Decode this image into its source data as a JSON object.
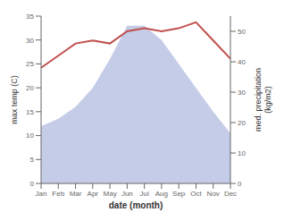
{
  "chart_data": {
    "type": "area",
    "categories": [
      "Jan",
      "Feb",
      "Mar",
      "Apr",
      "May",
      "Jun",
      "Jul",
      "Aug",
      "Sep",
      "Oct",
      "Nov",
      "Dec"
    ],
    "xlabel": "date (month)",
    "ylabel": "max temp (C)",
    "y2label": "med. precipitation\n(kg/m2)",
    "series": [
      {
        "type": "area",
        "color": "#c5cce8",
        "values": [
          12,
          13.5,
          16,
          20,
          26,
          33,
          33,
          30,
          25,
          20,
          15,
          10.5
        ]
      },
      {
        "type": "line",
        "color": "#c0504d",
        "axis": "y2",
        "values": [
          38,
          42,
          46,
          47,
          46,
          50,
          51,
          50,
          51,
          53,
          47,
          41
        ]
      }
    ],
    "ylim": [
      0,
      35
    ],
    "yticks": [
      0,
      5,
      10,
      15,
      20,
      25,
      30,
      35
    ],
    "y2lim": [
      0,
      55
    ],
    "y2ticks": [
      0,
      10,
      20,
      30,
      40,
      50
    ],
    "grid": false
  }
}
